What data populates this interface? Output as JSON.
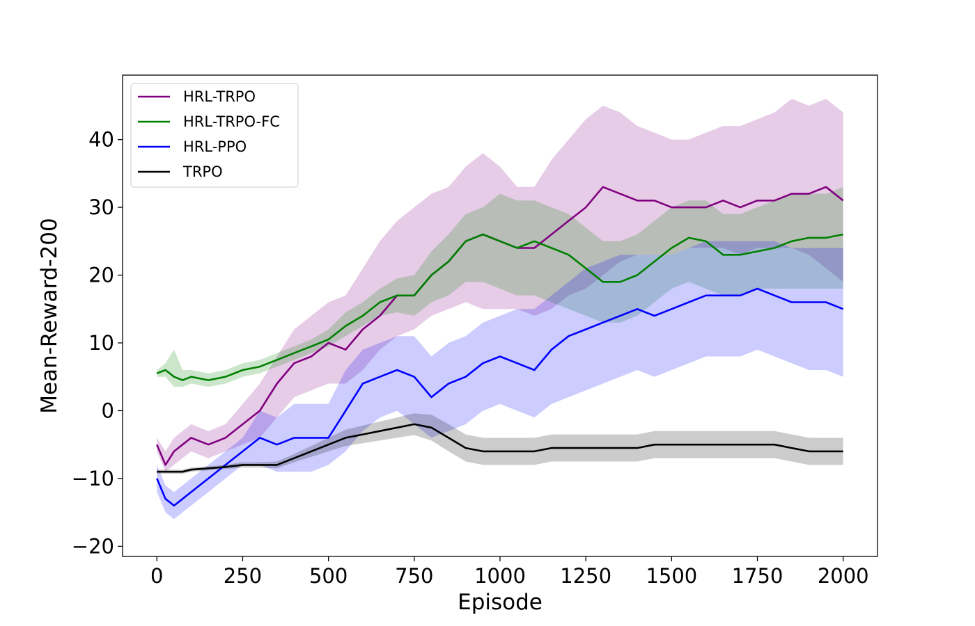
{
  "chart_data": {
    "type": "line",
    "title": "",
    "xlabel": "Episode",
    "ylabel": "Mean-Reward-200",
    "xlim": [
      -100,
      2100
    ],
    "ylim": [
      -21.5,
      49.5
    ],
    "xticks": [
      0,
      250,
      500,
      750,
      1000,
      1250,
      1500,
      1750,
      2000
    ],
    "yticks": [
      -20,
      -10,
      0,
      10,
      20,
      30,
      40
    ],
    "xtick_labels": [
      "0",
      "250",
      "500",
      "750",
      "1000",
      "1250",
      "1500",
      "1750",
      "2000"
    ],
    "ytick_labels": [
      "−20",
      "−10",
      "0",
      "10",
      "20",
      "30",
      "40"
    ],
    "grid": false,
    "legend_position": "top-left",
    "x": [
      0,
      25,
      50,
      75,
      100,
      150,
      200,
      250,
      300,
      350,
      400,
      450,
      500,
      550,
      600,
      650,
      700,
      750,
      800,
      850,
      900,
      950,
      1000,
      1050,
      1100,
      1150,
      1200,
      1250,
      1300,
      1350,
      1400,
      1450,
      1500,
      1550,
      1600,
      1650,
      1700,
      1750,
      1800,
      1850,
      1900,
      1950,
      2000
    ],
    "series": [
      {
        "name": "HRL-TRPO",
        "color": "#800080",
        "mean": [
          -5,
          -8,
          -6,
          -5,
          -4,
          -5,
          -4,
          -2,
          0,
          4,
          7,
          8,
          10,
          9,
          12,
          14,
          17,
          17,
          20,
          22,
          25,
          26,
          25,
          24,
          24,
          26,
          28,
          30,
          33,
          32,
          31,
          31,
          30,
          30,
          30,
          31,
          30,
          31,
          31,
          32,
          32,
          33,
          31
        ],
        "lower": [
          -6,
          -9,
          -8,
          -7,
          -6,
          -7,
          -6,
          -5,
          -4,
          -1,
          2,
          3,
          4,
          4,
          6,
          9,
          11,
          12,
          14,
          15,
          16,
          15,
          15,
          15,
          14,
          15,
          17,
          18,
          20,
          22,
          23,
          23,
          23,
          24,
          24,
          24,
          23,
          24,
          24,
          24,
          23,
          21,
          19
        ],
        "upper": [
          -4,
          -6,
          -4,
          -3,
          -2,
          -3,
          -2,
          1,
          4,
          8,
          12,
          14,
          16,
          17,
          21,
          25,
          28,
          30,
          32,
          33,
          36,
          38,
          36,
          33,
          33,
          37,
          40,
          43,
          45,
          44,
          42,
          41,
          40,
          40,
          41,
          42,
          42,
          43,
          44,
          46,
          45,
          46,
          44
        ]
      },
      {
        "name": "HRL-TRPO-FC",
        "color": "#008000",
        "mean": [
          5.5,
          6,
          5,
          4.5,
          5,
          4.5,
          5,
          6,
          6.5,
          7.5,
          8.5,
          9.5,
          10.5,
          12.5,
          14,
          16,
          17,
          17,
          20,
          22,
          25,
          26,
          25,
          24,
          25,
          24,
          23,
          21,
          19,
          19,
          20,
          22,
          24,
          25.5,
          25,
          23,
          23,
          23.5,
          24,
          25,
          25.5,
          25.5,
          26
        ],
        "lower": [
          5,
          5,
          3.5,
          3.5,
          4,
          3.5,
          4,
          5,
          5.5,
          6.5,
          7.5,
          8.5,
          9.5,
          11,
          12.5,
          14,
          14.5,
          14,
          16,
          17,
          19,
          19,
          18,
          17,
          17,
          16,
          15,
          14,
          13,
          13,
          14,
          16,
          18,
          19,
          18,
          17,
          17,
          18,
          18,
          18,
          18,
          18,
          18
        ],
        "upper": [
          6,
          7,
          9,
          6,
          6,
          5.5,
          6,
          7,
          7.5,
          8.5,
          9.5,
          10.5,
          12,
          14.5,
          16,
          18,
          19.5,
          20,
          23.5,
          26,
          29,
          30,
          32,
          31,
          31,
          30,
          29,
          27,
          25,
          25,
          26,
          28,
          30,
          31,
          31,
          29,
          29,
          30,
          31,
          32,
          32,
          32,
          33
        ]
      },
      {
        "name": "HRL-PPO",
        "color": "#0000ff",
        "mean": [
          -10,
          -13,
          -14,
          -13,
          -12,
          -10,
          -8,
          -6,
          -4,
          -5,
          -4,
          -4,
          -4,
          0,
          4,
          5,
          6,
          5,
          2,
          4,
          5,
          7,
          8,
          7,
          6,
          9,
          11,
          12,
          13,
          14,
          15,
          14,
          15,
          16,
          17,
          17,
          17,
          18,
          17,
          16,
          16,
          16,
          15
        ],
        "lower": [
          -12,
          -15,
          -16,
          -15,
          -14,
          -12,
          -10,
          -8,
          -8,
          -9,
          -9,
          -9,
          -8,
          -6,
          -3,
          -1,
          0,
          -2,
          -4,
          -3,
          -2,
          0,
          1,
          0,
          -1,
          1,
          2,
          3,
          4,
          5,
          6,
          5,
          6,
          7,
          8,
          8,
          8,
          9,
          8,
          7,
          6,
          6,
          5
        ],
        "upper": [
          -8,
          -11,
          -12,
          -11,
          -10,
          -8,
          -6,
          -4,
          0,
          -1,
          1,
          1,
          1,
          6,
          9,
          10,
          11,
          11,
          8,
          10,
          11,
          13,
          14,
          15,
          15,
          17,
          19,
          21,
          22,
          23,
          23,
          23,
          23,
          24,
          25,
          25,
          25,
          25,
          25,
          24,
          24,
          24,
          24
        ]
      },
      {
        "name": "TRPO",
        "color": "#000000",
        "mean": [
          -9,
          -9,
          -9,
          -9,
          -8.7,
          -8.5,
          -8.3,
          -8,
          -8,
          -8,
          -7,
          -6,
          -5,
          -4,
          -3.5,
          -3,
          -2.5,
          -2,
          -2.5,
          -4,
          -5.5,
          -6,
          -6,
          -6,
          -6,
          -5.5,
          -5.5,
          -5.5,
          -5.5,
          -5.5,
          -5.5,
          -5,
          -5,
          -5,
          -5,
          -5,
          -5,
          -5,
          -5,
          -5.5,
          -6,
          -6,
          -6
        ],
        "lower": [
          -9.3,
          -9.3,
          -9.3,
          -9.3,
          -9,
          -8.8,
          -8.6,
          -8.4,
          -8.4,
          -8.5,
          -7.6,
          -6.8,
          -6,
          -5.2,
          -4.8,
          -4.4,
          -4,
          -3.6,
          -4.4,
          -6,
          -7.5,
          -8,
          -8,
          -8,
          -8,
          -7.5,
          -7.5,
          -7.5,
          -7.5,
          -7.5,
          -7.5,
          -7,
          -7,
          -7,
          -7,
          -7,
          -7,
          -7,
          -7,
          -7.5,
          -8,
          -8,
          -8
        ],
        "upper": [
          -8.7,
          -8.7,
          -8.7,
          -8.7,
          -8.4,
          -8.2,
          -8,
          -7.6,
          -7.6,
          -7.5,
          -6.4,
          -5.2,
          -4,
          -2.8,
          -2.2,
          -1.6,
          -1,
          -0.4,
          -0.6,
          -2,
          -3.5,
          -4,
          -4,
          -4,
          -4,
          -3.5,
          -3.5,
          -3.5,
          -3.5,
          -3.5,
          -3.5,
          -3,
          -3,
          -3,
          -3,
          -3,
          -3,
          -3,
          -3,
          -3.5,
          -4,
          -4,
          -4
        ]
      }
    ]
  }
}
